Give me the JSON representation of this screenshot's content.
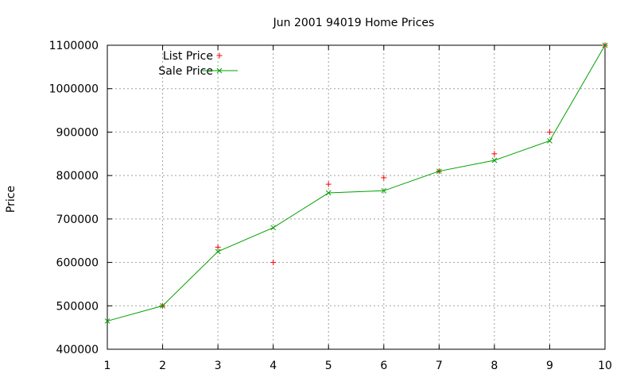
{
  "chart_data": {
    "type": "line",
    "title": "Jun 2001 94019 Home Prices",
    "xlabel": "",
    "ylabel": "Price",
    "xlim": [
      1,
      10
    ],
    "ylim": [
      400000,
      1100000
    ],
    "xticks": [
      "1",
      "2",
      "3",
      "4",
      "5",
      "6",
      "7",
      "8",
      "9",
      "10"
    ],
    "yticks": [
      "400000",
      "500000",
      "600000",
      "700000",
      "800000",
      "900000",
      "1000000",
      "1100000"
    ],
    "grid": true,
    "legend_position": "top-left",
    "series": [
      {
        "name": "List Price",
        "style": "points",
        "marker": "plus",
        "color": "#ff0000",
        "x": [
          2,
          3,
          4,
          5,
          6,
          7,
          8,
          9,
          10
        ],
        "values": [
          500000,
          635000,
          600000,
          780000,
          795000,
          810000,
          850000,
          900000,
          1100000
        ]
      },
      {
        "name": "Sale Price",
        "style": "linespoints",
        "marker": "cross",
        "color": "#00a000",
        "x": [
          1,
          2,
          3,
          4,
          5,
          6,
          7,
          8,
          9,
          10
        ],
        "values": [
          465000,
          500000,
          625000,
          680000,
          760000,
          765000,
          810000,
          835000,
          880000,
          1100000
        ]
      }
    ]
  }
}
